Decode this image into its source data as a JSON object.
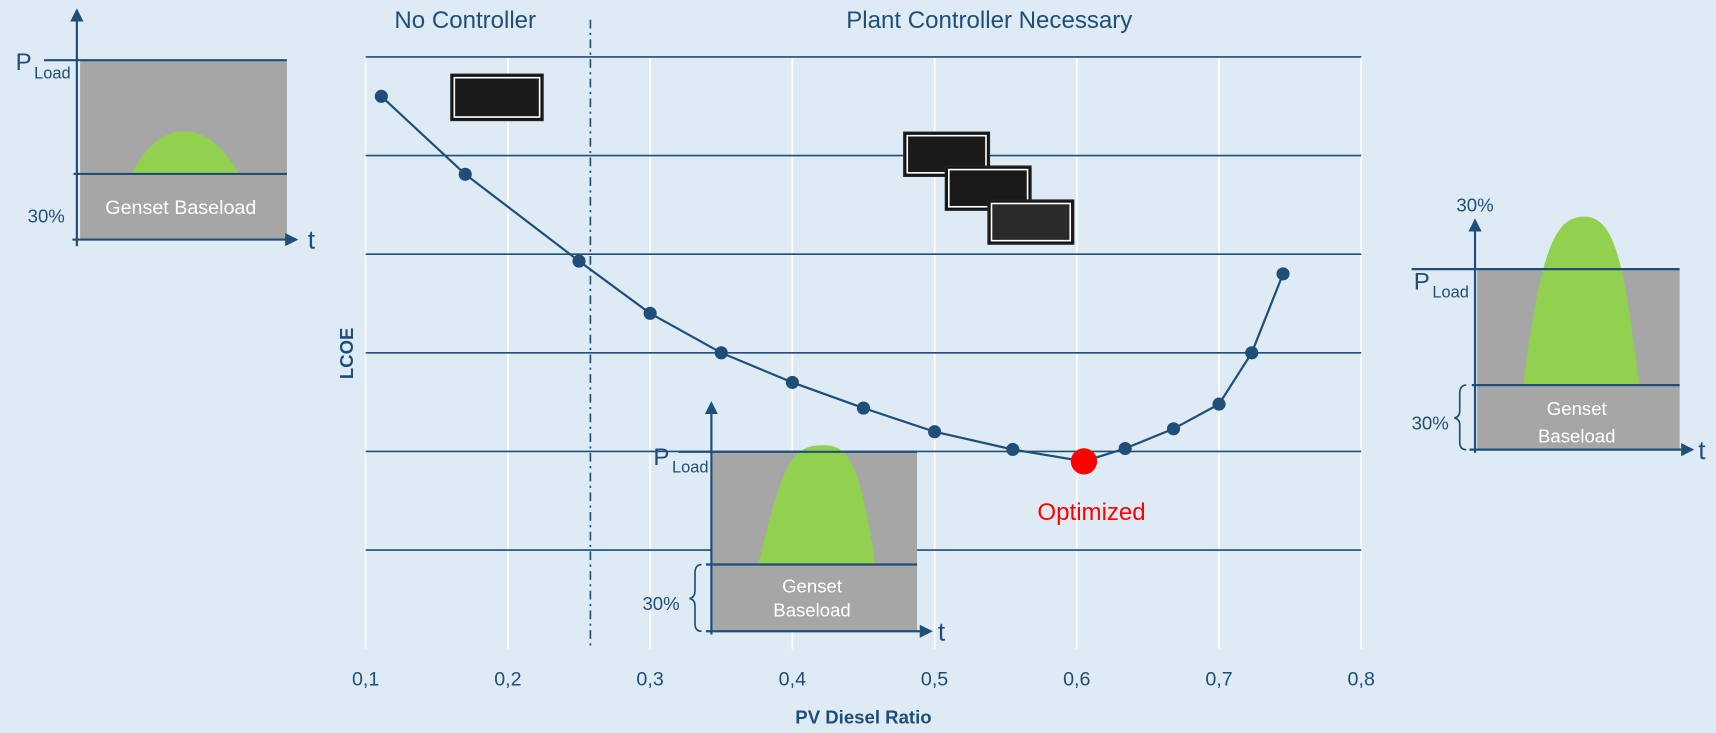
{
  "chart_data": {
    "type": "line",
    "x_label": "PV Diesel Ratio",
    "y_label": "LCOE",
    "x": [
      0.111,
      0.17,
      0.25,
      0.3,
      0.35,
      0.4,
      0.45,
      0.5,
      0.555,
      0.605,
      0.634,
      0.668,
      0.7,
      0.723,
      0.745
    ],
    "values": [
      5.6,
      4.81,
      3.93,
      3.4,
      3.0,
      2.7,
      2.44,
      2.2,
      2.02,
      1.9,
      2.03,
      2.23,
      2.48,
      3.0,
      3.8
    ],
    "color": "#1f4e79",
    "xlim": [
      0.1,
      0.8
    ],
    "xticks": [
      {
        "value": 0.1,
        "label": "0,1"
      },
      {
        "value": 0.2,
        "label": "0,2"
      },
      {
        "value": 0.3,
        "label": "0,3"
      },
      {
        "value": 0.4,
        "label": "0,4"
      },
      {
        "value": 0.5,
        "label": "0,5"
      },
      {
        "value": 0.6,
        "label": "0,6"
      },
      {
        "value": 0.7,
        "label": "0,7"
      },
      {
        "value": 0.8,
        "label": "0,8"
      }
    ],
    "ylim": [
      0,
      6
    ],
    "yticks": [
      1,
      2,
      3,
      4,
      5,
      6
    ],
    "grid": true,
    "divider_x": 0.258,
    "regions": [
      {
        "text": "No Controller"
      },
      {
        "text": "Plant Controller Necessary"
      }
    ],
    "annotations": [
      {
        "text": "Optimized",
        "x": 0.605,
        "y": 1.9,
        "color": "#ff0000"
      }
    ]
  },
  "insets": [
    {
      "p": "P",
      "p_sub": "Load",
      "percent": "30%",
      "baseload": "Genset Baseload",
      "t": "t"
    },
    {
      "p": "P",
      "p_sub": "Load",
      "percent": "30%",
      "baseload_lines": [
        "Genset",
        "Baseload"
      ],
      "t": "t"
    },
    {
      "p": "P",
      "p_sub": "Load",
      "percent_top": "30%",
      "percent": "30%",
      "baseload_lines": [
        "Genset",
        "Baseload"
      ],
      "t": "t"
    }
  ]
}
